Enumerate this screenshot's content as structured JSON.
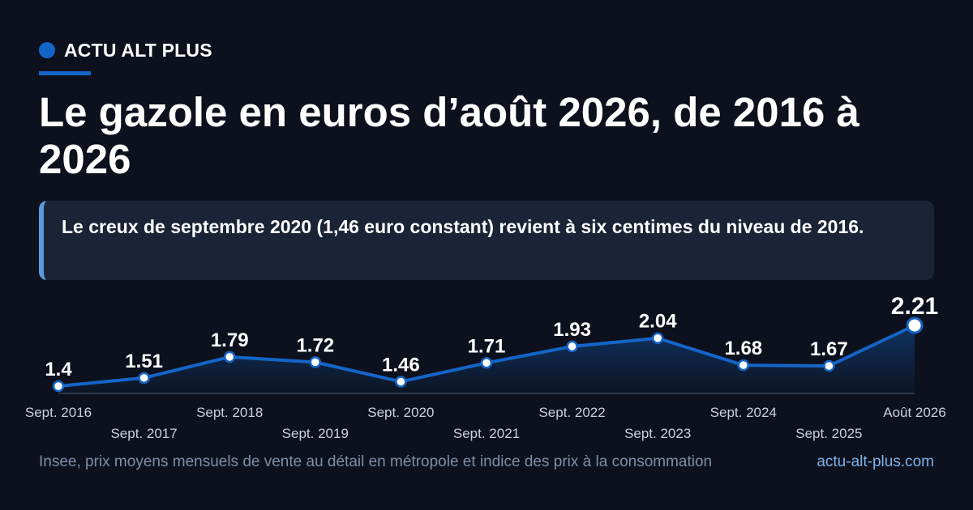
{
  "brand": {
    "name": "ACTU ALT PLUS"
  },
  "headline": "Le gazole en euros d’août 2026, de 2016 à 2026",
  "callout": "Le creux de septembre 2020 (1,46 euro constant) revient à six centimes du niveau de 2016.",
  "footer": {
    "source": "Insee, prix moyens mensuels de vente au détail en métropole et indice des prix à la consommation",
    "site": "actu-alt-plus.com"
  },
  "colors": {
    "background": "#0c111d",
    "accent": "#1565c8",
    "line": "#1565c8",
    "callout_bg": "#1a2436",
    "callout_border": "#5a9be0"
  },
  "chart_data": {
    "type": "line",
    "categories": [
      "Sept. 2016",
      "Sept. 2017",
      "Sept. 2018",
      "Sept. 2019",
      "Sept. 2020",
      "Sept. 2021",
      "Sept. 2022",
      "Sept. 2023",
      "Sept. 2024",
      "Sept. 2025",
      "Août 2026"
    ],
    "values": [
      1.4,
      1.51,
      1.79,
      1.72,
      1.46,
      1.71,
      1.93,
      2.04,
      1.68,
      1.67,
      2.21
    ],
    "labels": [
      "1.4",
      "1.51",
      "1.79",
      "1.72",
      "1.46",
      "1.71",
      "1.93",
      "2.04",
      "1.68",
      "1.67",
      "2.21"
    ],
    "title": "",
    "xlabel": "",
    "ylabel": "",
    "grid": false,
    "area_fill": true,
    "highlight_last": true
  }
}
